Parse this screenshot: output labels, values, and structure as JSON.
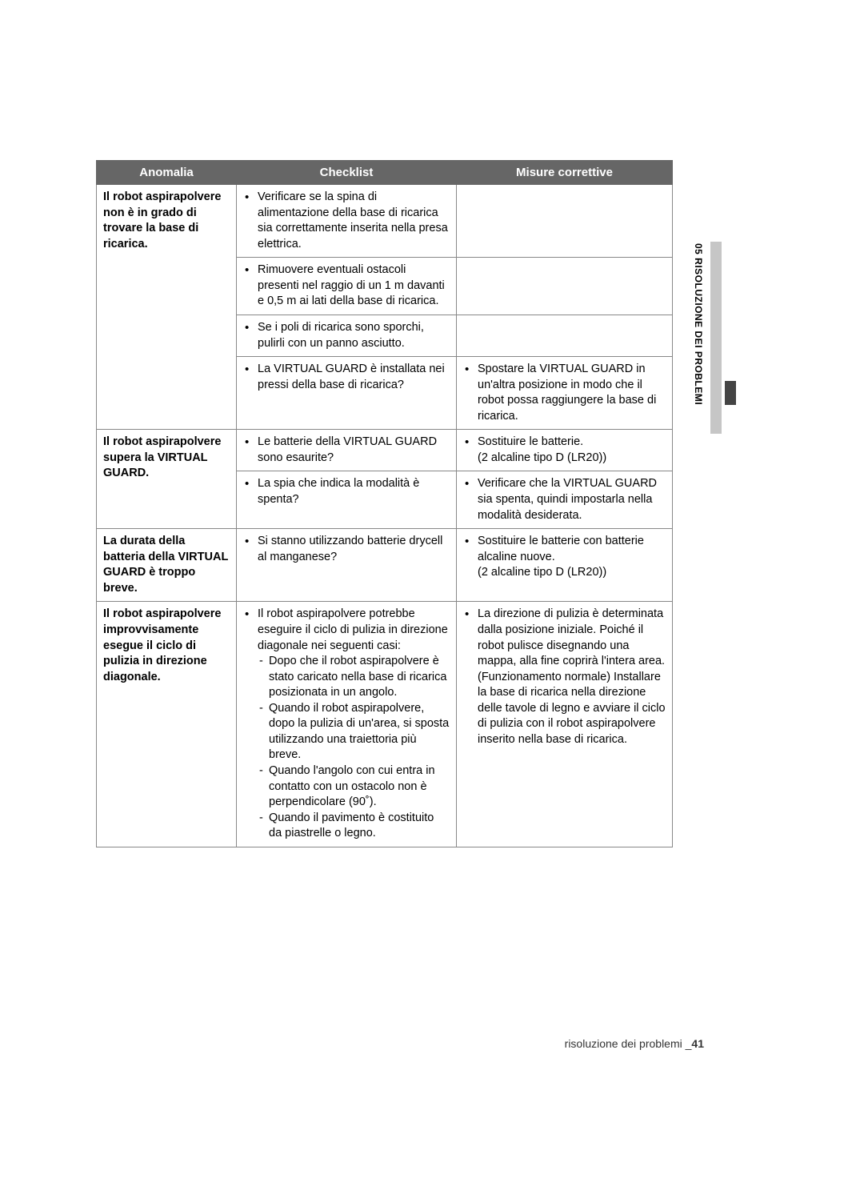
{
  "sideLabel": "05  RISOLUZIONE DEI PROBLEMI",
  "footerText": "risoluzione dei problemi _",
  "footerPage": "41",
  "headers": {
    "anomalia": "Anomalia",
    "checklist": "Checklist",
    "misure": "Misure correttive"
  },
  "rows": {
    "r1": {
      "anom": "Il robot aspirapolvere non è in grado di trovare la base di ricarica.",
      "c1": "Verificare se la spina di alimentazione della base di ricarica sia correttamente inserita nella presa elettrica.",
      "c2": "Rimuovere eventuali ostacoli presenti nel raggio di un 1 m davanti e 0,5 m ai lati della base di ricarica.",
      "c3": "Se i poli di ricarica sono sporchi, pulirli con un panno asciutto.",
      "c4": "La VIRTUAL GUARD è installata nei pressi della base di ricarica?",
      "m4": "Spostare la VIRTUAL GUARD in un'altra posizione in modo che il robot possa raggiungere la base di ricarica."
    },
    "r2": {
      "anom": "Il robot aspirapolvere supera la VIRTUAL GUARD.",
      "c1": "Le batterie della VIRTUAL GUARD sono esaurite?",
      "m1a": "Sostituire le batterie.",
      "m1b": "(2 alcaline tipo D (LR20))",
      "c2": "La spia che indica la modalità è spenta?",
      "m2": "Verificare che la VIRTUAL GUARD sia spenta, quindi impostarla nella modalità desiderata."
    },
    "r3": {
      "anom": "La durata della batteria della VIRTUAL GUARD è troppo breve.",
      "c1": "Si stanno utilizzando batterie drycell al manganese?",
      "m1a": "Sostituire le batterie con batterie alcaline nuove.",
      "m1b": "(2 alcaline tipo D (LR20))"
    },
    "r4": {
      "anom": "Il robot aspirapolvere improvvisamente esegue il ciclo di pulizia in direzione diagonale.",
      "c_lead": "Il robot aspirapolvere potrebbe eseguire il ciclo di pulizia in direzione diagonale nei seguenti casi:",
      "c_d1": "Dopo che il robot aspirapolvere è stato caricato nella base di ricarica posizionata in un angolo.",
      "c_d2": "Quando il robot aspirapolvere, dopo la pulizia di un'area, si sposta utilizzando una traiettoria più breve.",
      "c_d3": "Quando l'angolo con cui entra in contatto con un ostacolo non è perpendicolare (90˚).",
      "c_d4": "Quando il pavimento è costituito da piastrelle o legno.",
      "m1": "La direzione di pulizia è determinata dalla posizione iniziale. Poiché il robot pulisce disegnando una mappa, alla fine coprirà l'intera area. (Funzionamento normale) Installare la base di ricarica nella direzione delle tavole di legno e avviare il ciclo di pulizia con il robot aspirapolvere inserito nella base di ricarica."
    }
  }
}
